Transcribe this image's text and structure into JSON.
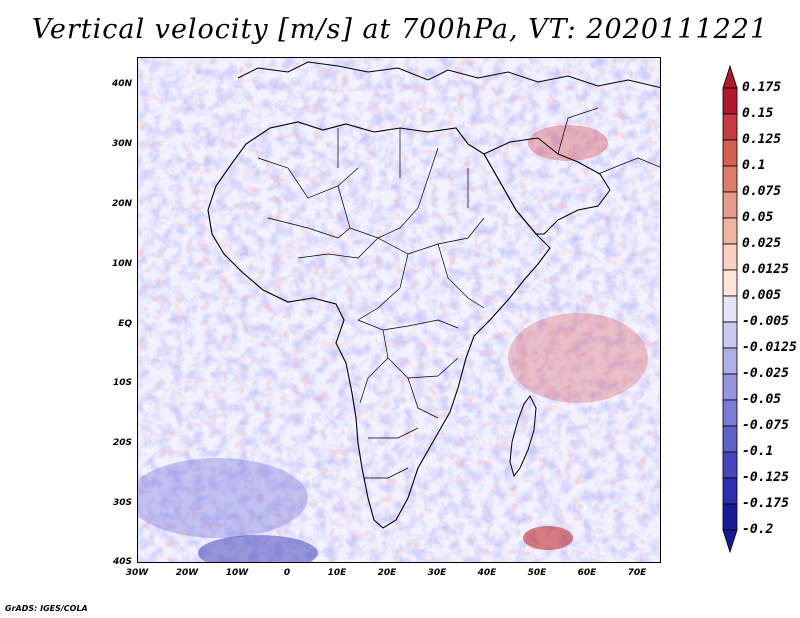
{
  "title": "Vertical velocity [m/s] at 700hPa, VT: 2020111221",
  "credit": "GrADS: IGES/COLA",
  "map": {
    "lat_labels": [
      "40N",
      "30N",
      "20N",
      "10N",
      "EQ",
      "10S",
      "20S",
      "30S",
      "40S"
    ],
    "lon_labels": [
      "30W",
      "20W",
      "10W",
      "0",
      "10E",
      "20E",
      "30E",
      "40E",
      "50E",
      "60E",
      "70E"
    ],
    "field": "vertical velocity",
    "level": "700hPa",
    "valid_time": "2020111221"
  },
  "colorbar": {
    "labels": [
      "0.175",
      "0.15",
      "0.125",
      "0.1",
      "0.075",
      "0.05",
      "0.025",
      "0.0125",
      "0.005",
      "-0.005",
      "-0.0125",
      "-0.025",
      "-0.05",
      "-0.075",
      "-0.1",
      "-0.125",
      "-0.175",
      "-0.2"
    ],
    "colors": [
      "#b2182b",
      "#c73a3e",
      "#d6604d",
      "#e07a6a",
      "#ea9a88",
      "#f4b4a4",
      "#f9cfc2",
      "#fde5dc",
      "#ffffff",
      "#e4e4fb",
      "#c9c9f3",
      "#aeaeeb",
      "#9494e2",
      "#7a7ad8",
      "#6161cc",
      "#4646be",
      "#2e2eae",
      "#1a1a99"
    ]
  }
}
